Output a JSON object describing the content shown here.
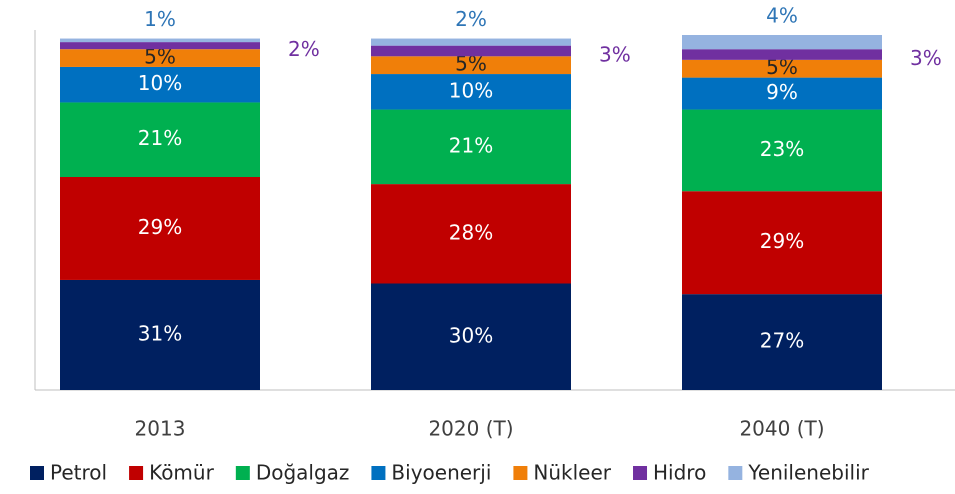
{
  "chart_data": {
    "type": "stacked_bar",
    "categories": [
      "2013",
      "2020 (T)",
      "2040 (T)"
    ],
    "ylim": [
      0,
      100
    ],
    "series": [
      {
        "name": "Petrol",
        "color": "#002060",
        "values": [
          31,
          30,
          27
        ],
        "value_labels": [
          "31%",
          "30%",
          "27%"
        ]
      },
      {
        "name": "Kömür",
        "color": "#c00000",
        "values": [
          29,
          28,
          29
        ],
        "value_labels": [
          "29%",
          "28%",
          "29%"
        ]
      },
      {
        "name": "Doğalgaz",
        "color": "#00b050",
        "values": [
          21,
          21,
          23
        ],
        "value_labels": [
          "21%",
          "21%",
          "23%"
        ]
      },
      {
        "name": "Biyoenerji",
        "color": "#0070c0",
        "values": [
          10,
          10,
          9
        ],
        "value_labels": [
          "10%",
          "10%",
          "9%"
        ]
      },
      {
        "name": "Nükleer",
        "color": "#f07f09",
        "values": [
          5,
          5,
          5
        ],
        "value_labels": [
          "5%",
          "5%",
          "5%"
        ]
      },
      {
        "name": "Hidro",
        "color": "#7030a0",
        "values": [
          2,
          3,
          3
        ],
        "value_labels": [
          "2%",
          "3%",
          "3%"
        ]
      },
      {
        "name": "Yenilenebilir",
        "color": "#95b3e0",
        "values": [
          1,
          2,
          4
        ],
        "value_labels": [
          "1%",
          "2%",
          "4%"
        ]
      }
    ]
  }
}
